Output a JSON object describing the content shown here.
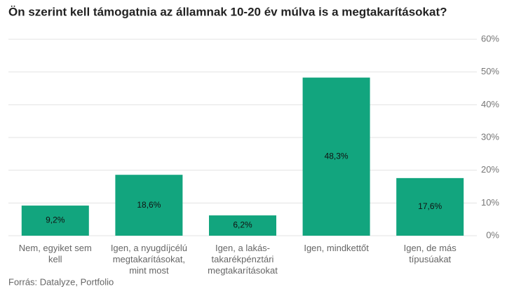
{
  "chart_data": {
    "type": "bar",
    "title": "Ön szerint kell támogatnia az államnak 10-20 év múlva is a megtakarításokat?",
    "categories": [
      "Nem, egyiket sem kell",
      "Igen, a nyugdíjcélú megtakarításokat, mint most",
      "Igen, a lakás-takarékpénztári megtakarításokat",
      "Igen, mindkettőt",
      "Igen, de más típusúakat"
    ],
    "values": [
      9.2,
      18.6,
      6.2,
      48.3,
      17.6
    ],
    "value_labels": [
      "9,2%",
      "18,6%",
      "6,2%",
      "48,3%",
      "17,6%"
    ],
    "color": "#12a57e",
    "ylim": [
      0,
      60
    ],
    "yticks": [
      {
        "value": 0,
        "label": "0%"
      },
      {
        "value": 10,
        "label": "10%"
      },
      {
        "value": 20,
        "label": "20%"
      },
      {
        "value": 30,
        "label": "30%"
      },
      {
        "value": 40,
        "label": "40%"
      },
      {
        "value": 50,
        "label": "50%"
      },
      {
        "value": 60,
        "label": "60%"
      }
    ],
    "grid": true,
    "source": "Forrás: Datalyze, Portfolio"
  }
}
